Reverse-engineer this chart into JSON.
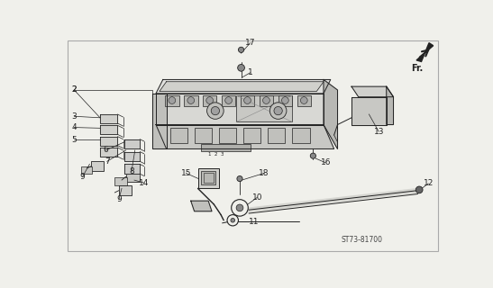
{
  "background_color": "#f0f0eb",
  "line_color": "#222222",
  "part_number": "ST73-81700",
  "figsize": [
    5.47,
    3.2
  ],
  "dpi": 100
}
